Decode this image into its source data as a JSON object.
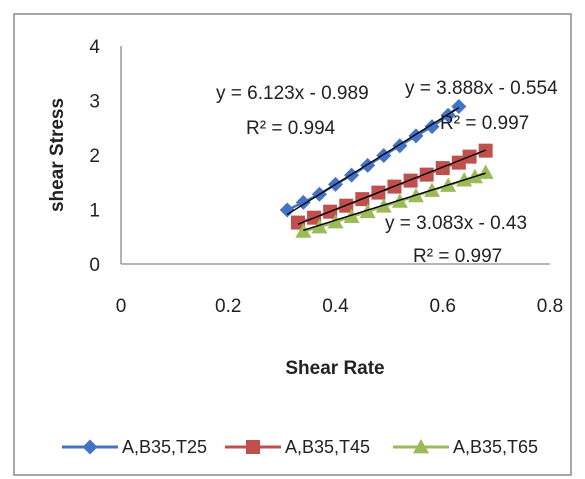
{
  "chart_data": {
    "type": "scatter",
    "xlabel": "Shear Rate",
    "ylabel": "shear Stress",
    "xlim": [
      0,
      0.8
    ],
    "ylim": [
      0,
      4
    ],
    "xticks": [
      "0",
      "0.2",
      "0.4",
      "0.6",
      "0.8"
    ],
    "yticks": [
      "0",
      "1",
      "2",
      "3",
      "4"
    ],
    "grid": false,
    "legend_position": "bottom",
    "series": [
      {
        "name": "A,B35,T25",
        "color": "#4472C4",
        "marker": "diamond",
        "x": [
          0.31,
          0.34,
          0.37,
          0.4,
          0.43,
          0.46,
          0.49,
          0.52,
          0.55,
          0.58,
          0.61,
          0.63
        ],
        "y": [
          0.99,
          1.13,
          1.28,
          1.46,
          1.63,
          1.81,
          1.99,
          2.17,
          2.35,
          2.52,
          2.73,
          2.89
        ]
      },
      {
        "name": "A,B35,T45",
        "color": "#C0504D",
        "marker": "square",
        "x": [
          0.33,
          0.36,
          0.39,
          0.42,
          0.45,
          0.48,
          0.51,
          0.54,
          0.57,
          0.6,
          0.63,
          0.65,
          0.68
        ],
        "y": [
          0.76,
          0.85,
          0.96,
          1.07,
          1.19,
          1.31,
          1.42,
          1.53,
          1.64,
          1.76,
          1.86,
          1.97,
          2.08
        ]
      },
      {
        "name": "A,B35,T65",
        "color": "#9BBB59",
        "marker": "triangle",
        "x": [
          0.34,
          0.37,
          0.4,
          0.43,
          0.46,
          0.49,
          0.52,
          0.55,
          0.58,
          0.61,
          0.64,
          0.66,
          0.68
        ],
        "y": [
          0.6,
          0.68,
          0.77,
          0.87,
          0.96,
          1.06,
          1.15,
          1.25,
          1.35,
          1.44,
          1.54,
          1.6,
          1.68
        ]
      }
    ],
    "trendlines": [
      {
        "slope": 6.123,
        "intercept": -0.989,
        "x_range": [
          0.31,
          0.63
        ]
      },
      {
        "slope": 3.888,
        "intercept": -0.554,
        "x_range": [
          0.33,
          0.68
        ]
      },
      {
        "slope": 3.083,
        "intercept": -0.43,
        "x_range": [
          0.34,
          0.68
        ]
      }
    ],
    "annotations": [
      {
        "equation": "y = 6.123x - 0.989",
        "r2": "R² = 0.994"
      },
      {
        "equation": "y = 3.888x - 0.554",
        "r2": "R² = 0.997"
      },
      {
        "equation": "y = 3.083x - 0.43",
        "r2": "R² = 0.997"
      }
    ]
  }
}
